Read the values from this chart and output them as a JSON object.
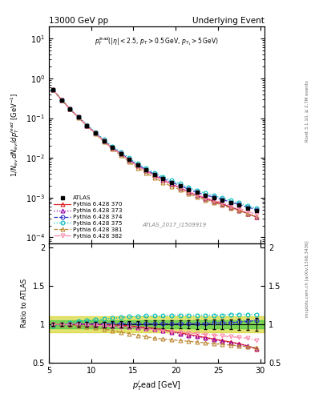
{
  "title_left": "13000 GeV pp",
  "title_right": "Underlying Event",
  "watermark": "ATLAS_2017_I1509919",
  "right_label": "mcplots.cern.ch [arXiv:1306.3436]",
  "right_label2": "Rivet 3.1.10, ≥ 2.7M events",
  "xdata": [
    5.5,
    6.5,
    7.5,
    8.5,
    9.5,
    10.5,
    11.5,
    12.5,
    13.5,
    14.5,
    15.5,
    16.5,
    17.5,
    18.5,
    19.5,
    20.5,
    21.5,
    22.5,
    23.5,
    24.5,
    25.5,
    26.5,
    27.5,
    28.5,
    29.5
  ],
  "atlas_y": [
    0.52,
    0.29,
    0.17,
    0.105,
    0.065,
    0.042,
    0.027,
    0.018,
    0.013,
    0.009,
    0.0065,
    0.005,
    0.0038,
    0.003,
    0.0024,
    0.002,
    0.0016,
    0.00135,
    0.00115,
    0.001,
    0.00088,
    0.00075,
    0.00065,
    0.00055,
    0.00048
  ],
  "atlas_yerr": [
    0.01,
    0.007,
    0.004,
    0.003,
    0.002,
    0.0015,
    0.001,
    0.0007,
    0.0005,
    0.0004,
    0.0003,
    0.00025,
    0.0002,
    0.00016,
    0.00013,
    0.0001,
    9e-05,
    8e-05,
    7e-05,
    6e-05,
    5.5e-05,
    5e-05,
    4.5e-05,
    4e-05,
    3.8e-05
  ],
  "series": [
    {
      "label": "Pythia 6.428 370",
      "color": "#dd2222",
      "linestyle": "-",
      "marker": "^",
      "ratio": [
        1.0,
        1.0,
        1.0,
        1.0,
        1.0,
        1.0,
        1.0,
        0.99,
        0.99,
        0.98,
        0.97,
        0.96,
        0.95,
        0.93,
        0.91,
        0.89,
        0.87,
        0.85,
        0.83,
        0.81,
        0.79,
        0.77,
        0.75,
        0.72,
        0.68
      ]
    },
    {
      "label": "Pythia 6.428 373",
      "color": "#9900aa",
      "linestyle": ":",
      "marker": "^",
      "ratio": [
        1.0,
        1.0,
        1.0,
        1.0,
        1.0,
        0.99,
        0.99,
        0.98,
        0.98,
        0.97,
        0.96,
        0.95,
        0.94,
        0.92,
        0.9,
        0.88,
        0.86,
        0.84,
        0.82,
        0.8,
        0.78,
        0.76,
        0.74,
        0.72,
        0.69
      ]
    },
    {
      "label": "Pythia 6.428 374",
      "color": "#3333cc",
      "linestyle": "--",
      "marker": "o",
      "ratio": [
        1.0,
        1.0,
        1.0,
        1.01,
        1.01,
        1.01,
        1.01,
        1.01,
        1.01,
        1.01,
        1.01,
        1.01,
        1.01,
        1.01,
        1.01,
        1.01,
        1.01,
        1.01,
        1.01,
        1.02,
        1.02,
        1.02,
        1.03,
        1.04,
        1.05
      ]
    },
    {
      "label": "Pythia 6.428 375",
      "color": "#00bbbb",
      "linestyle": ":",
      "marker": "o",
      "ratio": [
        0.98,
        1.0,
        1.02,
        1.04,
        1.05,
        1.06,
        1.07,
        1.08,
        1.09,
        1.1,
        1.1,
        1.11,
        1.11,
        1.11,
        1.12,
        1.12,
        1.12,
        1.12,
        1.12,
        1.12,
        1.12,
        1.13,
        1.13,
        1.13,
        1.13
      ]
    },
    {
      "label": "Pythia 6.428 381",
      "color": "#bb8833",
      "linestyle": "--",
      "marker": "^",
      "ratio": [
        1.0,
        1.0,
        0.99,
        0.98,
        0.97,
        0.96,
        0.94,
        0.92,
        0.9,
        0.88,
        0.86,
        0.84,
        0.82,
        0.81,
        0.8,
        0.79,
        0.78,
        0.77,
        0.76,
        0.75,
        0.74,
        0.73,
        0.72,
        0.71,
        0.7
      ]
    },
    {
      "label": "Pythia 6.428 382",
      "color": "#ff88aa",
      "linestyle": "-.",
      "marker": "v",
      "ratio": [
        1.0,
        1.0,
        1.0,
        1.0,
        0.99,
        0.99,
        0.98,
        0.97,
        0.96,
        0.96,
        0.95,
        0.94,
        0.93,
        0.92,
        0.91,
        0.9,
        0.89,
        0.88,
        0.87,
        0.86,
        0.85,
        0.84,
        0.83,
        0.82,
        0.79
      ]
    }
  ],
  "atlas_band_green": "#44cc44",
  "atlas_band_yellow": "#cccc00",
  "ylim_main": [
    7e-05,
    20.0
  ],
  "ylim_ratio": [
    0.5,
    2.05
  ],
  "xlim": [
    5.0,
    30.5
  ]
}
